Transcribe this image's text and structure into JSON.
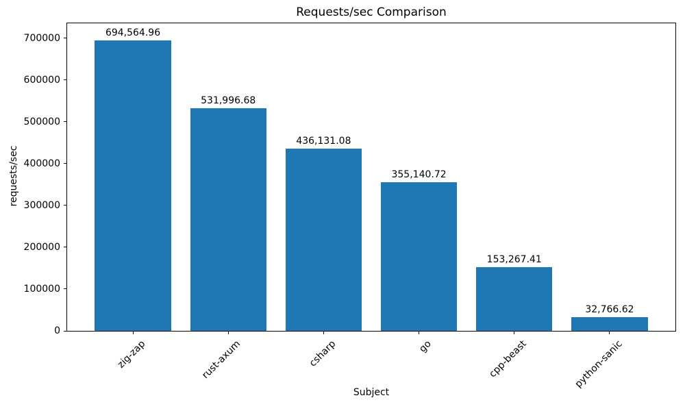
{
  "chart_data": {
    "type": "bar",
    "title": "Requests/sec Comparison",
    "xlabel": "Subject",
    "ylabel": "requests/sec",
    "categories": [
      "zig-zap",
      "rust-axum",
      "csharp",
      "go",
      "cpp-beast",
      "python-sanic"
    ],
    "values": [
      694564.96,
      531996.68,
      436131.08,
      355140.72,
      153267.41,
      32766.62
    ],
    "value_labels": [
      "694,564.96",
      "531,996.68",
      "436,131.08",
      "355,140.72",
      "153,267.41",
      "32,766.62"
    ],
    "yticks": [
      0,
      100000,
      200000,
      300000,
      400000,
      500000,
      600000,
      700000
    ],
    "ytick_labels": [
      "0",
      "100000",
      "200000",
      "300000",
      "400000",
      "500000",
      "600000",
      "700000"
    ],
    "ylim": [
      0,
      736000
    ],
    "xlim": [
      -0.69,
      5.69
    ],
    "bar_width": 0.8,
    "bar_color": "#1f77b4",
    "grid": false,
    "legend": null,
    "xtick_rotation": 45
  }
}
